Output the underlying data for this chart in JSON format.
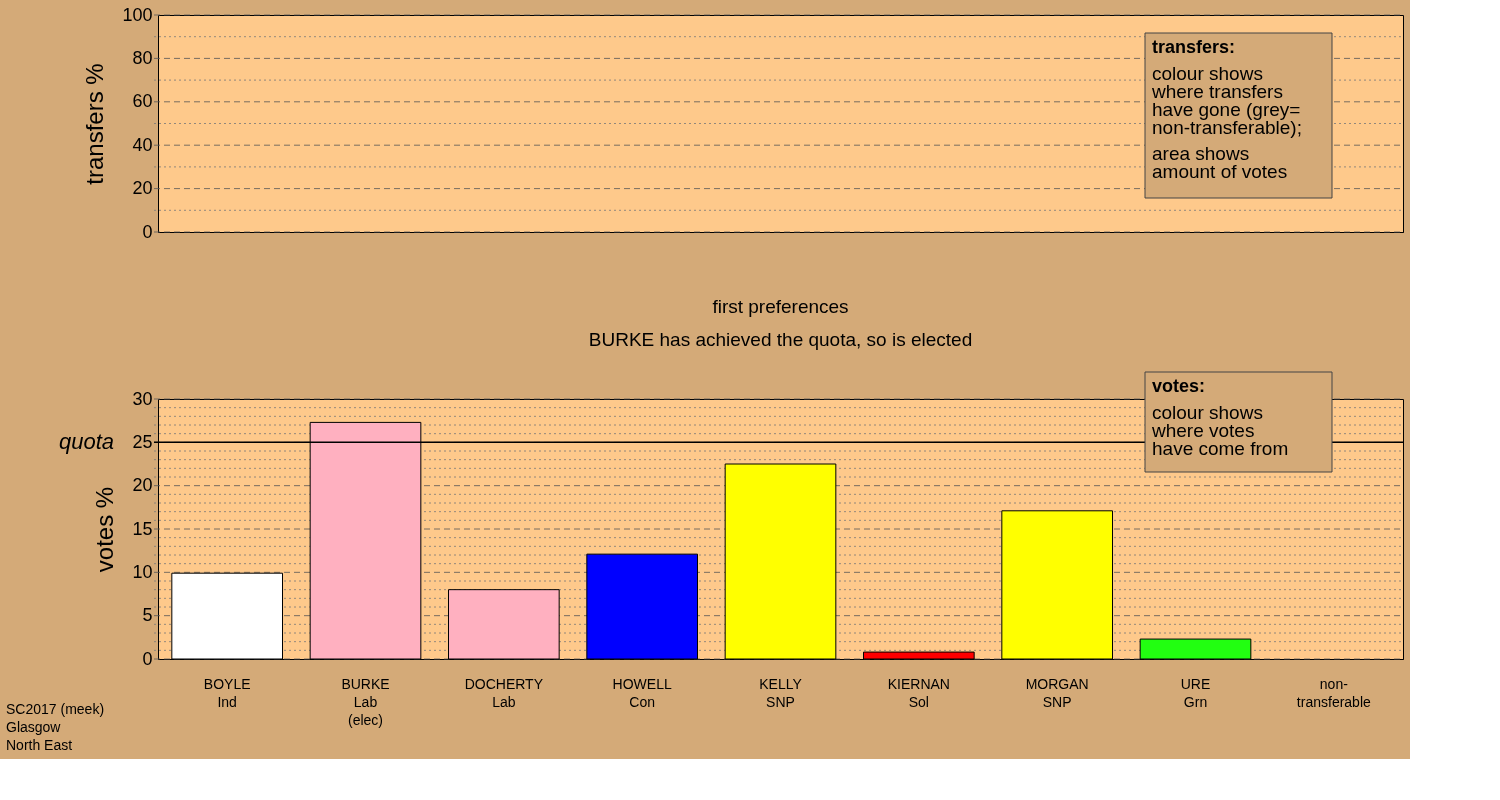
{
  "chart_data": [
    {
      "type": "bar",
      "ylabel": "transfers %",
      "categories": [
        null,
        null,
        null,
        null,
        null,
        null,
        null,
        null,
        null
      ],
      "values": [
        null,
        null,
        null,
        null,
        null,
        null,
        null,
        null,
        null
      ],
      "ylim": [
        0,
        100
      ],
      "yticks": [
        0,
        {
          "value": 10,
          "label": null
        },
        20,
        {
          "value": 30,
          "label": null
        },
        40,
        {
          "value": 50,
          "label": null
        },
        60,
        {
          "value": 70,
          "label": null
        },
        80,
        {
          "value": 90,
          "label": null
        },
        100
      ],
      "grid": "y",
      "tick_labels": "y",
      "annotations": [
        "transfers:",
        "colour shows\nwhere transfers\nhave gone (grey=\nnon-transferable);",
        "area shows\namount of votes"
      ]
    },
    {
      "type": "bar",
      "title": "first preferences",
      "subtitle": "BURKE has achieved the quota, so is elected",
      "ylabel": "votes %",
      "categories": [
        "BOYLE\nInd",
        "BURKE\nLab\n(elec)",
        "DOCHERTY\nLab",
        "HOWELL\nCon",
        "KELLY\nSNP",
        "KIERNAN\nSol",
        "MORGAN\nSNP",
        "URE\nGrn",
        "non-\ntransferable"
      ],
      "values": [
        9.9,
        27.3,
        8.0,
        12.1,
        22.5,
        0.8,
        17.1,
        2.3,
        null
      ],
      "colors": [
        "#ffffff",
        "#ffb0c0",
        "#ffb0c0",
        "#0000ff",
        "#ffff00",
        "#ff0000",
        "#ffff00",
        "#22ff11",
        "#aaaaaa"
      ],
      "ylim": [
        0,
        30
      ],
      "yticks": [
        0,
        {
          "value": 1,
          "label": null
        },
        {
          "value": 2,
          "label": null
        },
        {
          "value": 3,
          "label": null
        },
        {
          "value": 4,
          "label": null
        },
        5,
        {
          "value": 6,
          "label": null
        },
        {
          "value": 7,
          "label": null
        },
        {
          "value": 8,
          "label": null
        },
        {
          "value": 9,
          "label": null
        },
        10,
        {
          "value": 11,
          "label": null
        },
        {
          "value": 12,
          "label": null
        },
        {
          "value": 13,
          "label": null
        },
        {
          "value": 14,
          "label": null
        },
        15,
        {
          "value": 16,
          "label": null
        },
        {
          "value": 17,
          "label": null
        },
        {
          "value": 18,
          "label": null
        },
        {
          "value": 19,
          "label": null
        },
        20,
        {
          "value": 21,
          "label": null
        },
        {
          "value": 22,
          "label": null
        },
        {
          "value": 23,
          "label": null
        },
        {
          "value": 24,
          "label": null
        },
        25,
        {
          "value": 26,
          "label": null
        },
        {
          "value": 27,
          "label": null
        },
        {
          "value": 28,
          "label": null
        },
        {
          "value": 29,
          "label": null
        },
        30
      ],
      "grid": "y",
      "ref_lines": [
        {
          "axis": "y",
          "value": 25,
          "label": "quota"
        }
      ],
      "annotations": [
        "votes:",
        "colour shows\nwhere votes\nhave come from",
        "SC2017 (meek)\nGlasgow\nNorth East"
      ]
    }
  ]
}
